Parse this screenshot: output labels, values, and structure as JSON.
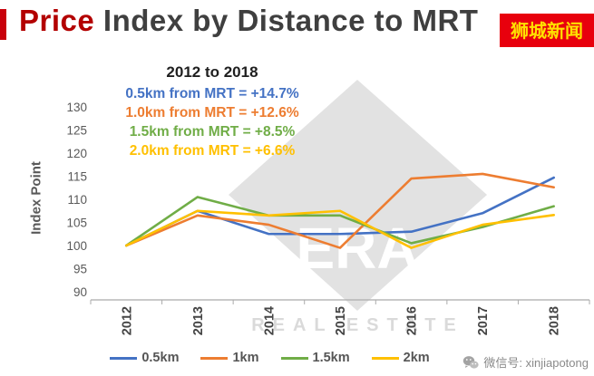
{
  "header": {
    "title_highlight": "Price",
    "title_rest": " Index by Distance to MRT",
    "badge": "狮城新闻"
  },
  "annotations": {
    "period": "2012 to 2018",
    "lines": [
      "0.5km from MRT = +14.7%",
      "1.0km from MRT = +12.6%",
      "1.5km from MRT = +8.5%",
      "2.0km from MRT = +6.6%"
    ]
  },
  "chart_data": {
    "type": "line",
    "title": "Price Index by Distance to MRT",
    "ylabel": "Index Point",
    "xlabel": "",
    "ylim": [
      90,
      130
    ],
    "yticks": [
      90,
      95,
      100,
      105,
      110,
      115,
      120,
      125,
      130
    ],
    "x": [
      "2012",
      "2013",
      "2014",
      "2015",
      "2016",
      "2017",
      "2018"
    ],
    "grid": false,
    "legend_position": "bottom",
    "series": [
      {
        "name": "0.5km",
        "color": "#4472C4",
        "values": [
          100,
          107.5,
          102.5,
          102.5,
          103,
          107,
          114.7
        ]
      },
      {
        "name": "1km",
        "color": "#ED7D31",
        "values": [
          100,
          106.5,
          104.5,
          99.5,
          114.5,
          115.5,
          112.6
        ]
      },
      {
        "name": "1.5km",
        "color": "#70AD47",
        "values": [
          100,
          110.5,
          106.5,
          106.5,
          100.5,
          104,
          108.5
        ]
      },
      {
        "name": "2km",
        "color": "#FFC000",
        "values": [
          100,
          107.5,
          106.5,
          107.5,
          99.5,
          104.5,
          106.6
        ]
      }
    ]
  },
  "watermark": {
    "main": "ERA",
    "subtext": "REAL ESTATE"
  },
  "footer": {
    "wechat": "微信号: xinjiapotong"
  }
}
